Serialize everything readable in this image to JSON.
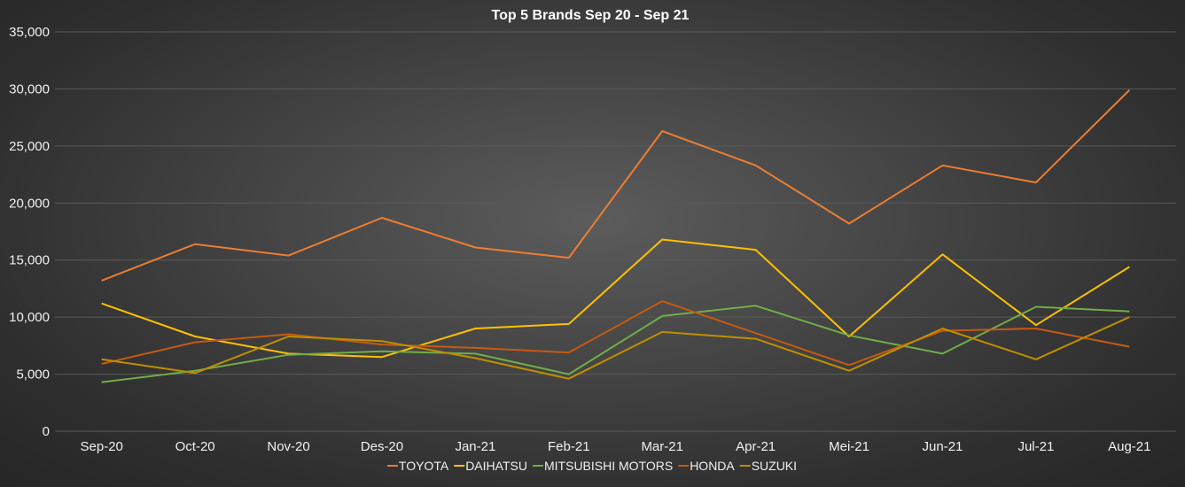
{
  "chart_data": {
    "type": "line",
    "title": "Top 5 Brands Sep 20 - Sep 21",
    "xlabel": "",
    "ylabel": "",
    "ylim": [
      0,
      35000
    ],
    "yticks": [
      0,
      5000,
      10000,
      15000,
      20000,
      25000,
      30000,
      35000
    ],
    "ytick_labels": [
      "0",
      "5,000",
      "10,000",
      "15,000",
      "20,000",
      "25,000",
      "30,000",
      "35,000"
    ],
    "grid": true,
    "legend_position": "bottom",
    "categories": [
      "Sep-20",
      "Oct-20",
      "Nov-20",
      "Des-20",
      "Jan-21",
      "Feb-21",
      "Mar-21",
      "Apr-21",
      "Mei-21",
      "Jun-21",
      "Jul-21",
      "Aug-21"
    ],
    "series": [
      {
        "name": "TOYOTA",
        "color": "#ED7D31",
        "values": [
          13200,
          16400,
          15400,
          18700,
          16100,
          15200,
          26300,
          23300,
          18200,
          23300,
          21800,
          29900
        ]
      },
      {
        "name": "DAIHATSU",
        "color": "#FFC000",
        "values": [
          11200,
          8300,
          6800,
          6500,
          9000,
          9400,
          16800,
          15900,
          8300,
          15500,
          9300,
          14400
        ]
      },
      {
        "name": "MITSUBISHI MOTORS",
        "color": "#70AD47",
        "values": [
          4300,
          5300,
          6700,
          7000,
          6800,
          5000,
          10100,
          11000,
          8400,
          6800,
          10900,
          10500
        ]
      },
      {
        "name": "HONDA",
        "color": "#C55A11",
        "values": [
          5900,
          7800,
          8500,
          7600,
          7300,
          6900,
          11400,
          8600,
          5800,
          8800,
          9000,
          7400
        ]
      },
      {
        "name": "SUZUKI",
        "color": "#BF8F00",
        "values": [
          6300,
          5100,
          8300,
          7900,
          6400,
          4600,
          8700,
          8100,
          5300,
          9000,
          6300,
          10000
        ]
      }
    ]
  }
}
